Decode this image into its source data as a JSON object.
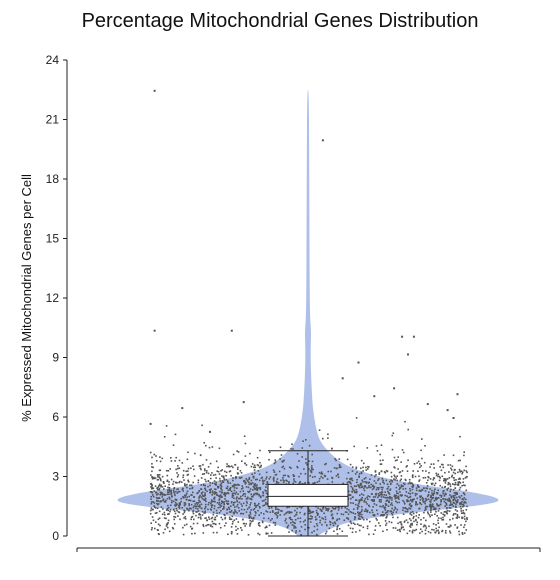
{
  "chart_data": {
    "type": "violin",
    "title": "Percentage Mitochondrial Genes Distribution",
    "xlabel": "",
    "ylabel": "% Expressed Mitochondrial Genes per Cell",
    "ylim": [
      0,
      24
    ],
    "yticks": [
      0,
      3,
      6,
      9,
      12,
      15,
      18,
      21,
      24
    ],
    "grid": false,
    "legend": "none",
    "violin_color": "#aec0ea",
    "box_color": "#ffffff",
    "point_color": "#555555",
    "violin": {
      "max_width_relative": 1.0,
      "profile": [
        [
          0.0,
          0.05
        ],
        [
          0.5,
          0.12
        ],
        [
          1.0,
          0.35
        ],
        [
          1.5,
          0.85
        ],
        [
          1.8,
          1.0
        ],
        [
          2.2,
          0.85
        ],
        [
          2.6,
          0.55
        ],
        [
          3.0,
          0.35
        ],
        [
          3.5,
          0.2
        ],
        [
          4.0,
          0.13
        ],
        [
          4.5,
          0.08
        ],
        [
          5.0,
          0.05
        ],
        [
          6.0,
          0.03
        ],
        [
          7.0,
          0.02
        ],
        [
          9.0,
          0.012
        ],
        [
          10.3,
          0.016
        ],
        [
          11.0,
          0.01
        ],
        [
          13.0,
          0.008
        ],
        [
          16.0,
          0.007
        ],
        [
          19.0,
          0.006
        ],
        [
          22.5,
          0.004
        ]
      ]
    },
    "box": {
      "whisker_low": 0.0,
      "q1": 1.5,
      "median": 2.0,
      "q3": 2.6,
      "whisker_high": 4.3
    },
    "outliers": [
      [
        -0.78,
        22.5
      ],
      [
        0.07,
        20.0
      ],
      [
        -0.78,
        10.4
      ],
      [
        -0.39,
        10.4
      ],
      [
        0.47,
        10.1
      ],
      [
        0.53,
        10.1
      ],
      [
        0.5,
        9.2
      ],
      [
        0.25,
        8.8
      ],
      [
        0.17,
        8.0
      ],
      [
        0.33,
        7.1
      ],
      [
        0.43,
        7.5
      ],
      [
        -0.64,
        6.5
      ],
      [
        -0.33,
        6.8
      ],
      [
        0.6,
        6.7
      ],
      [
        0.75,
        7.2
      ],
      [
        -0.8,
        5.7
      ],
      [
        0.73,
        6.0
      ],
      [
        -0.5,
        5.3
      ],
      [
        0.7,
        6.4
      ]
    ],
    "scatter": {
      "n_points": 2600,
      "x_range": [
        -0.8,
        0.8
      ],
      "center": 2.0,
      "spread": 0.9,
      "min": 0.1,
      "max": 6.0
    }
  }
}
